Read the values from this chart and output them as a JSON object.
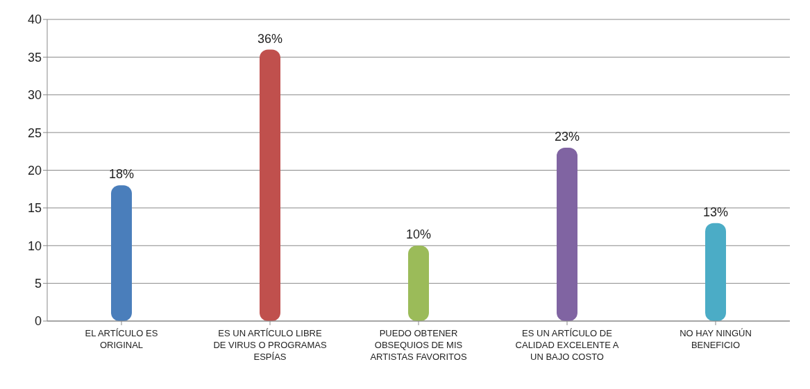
{
  "chart_data": {
    "type": "bar",
    "categories": [
      "EL ARTÍCULO ES ORIGINAL",
      "ES UN ARTÍCULO LIBRE DE VIRUS O PROGRAMAS ESPÍAS",
      "PUEDO OBTENER OBSEQUIOS DE MIS ARTISTAS FAVORITOS",
      "ES UN ARTÍCULO DE CALIDAD EXCELENTE A UN BAJO COSTO",
      "NO HAY NINGÚN BENEFICIO"
    ],
    "values": [
      18,
      36,
      10,
      23,
      13
    ],
    "colors": [
      "#4a7ebb",
      "#c0504d",
      "#9bbb59",
      "#8064a2",
      "#4bacc6"
    ],
    "value_labels": [
      "18%",
      "36%",
      "10%",
      "23%",
      "13%"
    ],
    "ylim": [
      0,
      40
    ],
    "yticks": [
      0,
      5,
      10,
      15,
      20,
      25,
      30,
      35,
      40
    ],
    "grid": "y",
    "legend": false
  }
}
